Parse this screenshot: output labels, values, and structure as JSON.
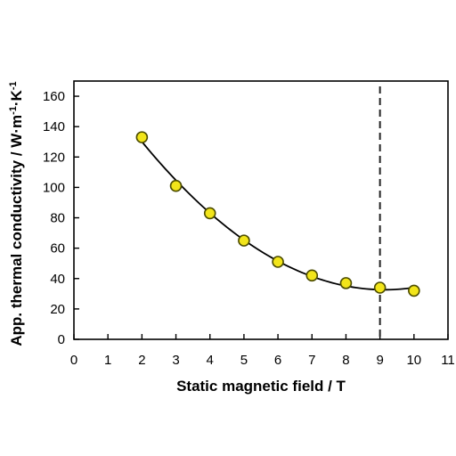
{
  "chart_data": {
    "type": "scatter",
    "title": "",
    "xlabel": "Static magnetic field / T",
    "ylabel_parts": [
      "App. thermal conductivity / W·m",
      "-1",
      "·K",
      "-1"
    ],
    "xlim": [
      0,
      11
    ],
    "ylim": [
      0,
      170
    ],
    "xticks": [
      0,
      1,
      2,
      3,
      4,
      5,
      6,
      7,
      8,
      9,
      10,
      11
    ],
    "yticks": [
      0,
      20,
      40,
      60,
      80,
      100,
      120,
      140,
      160
    ],
    "grid": false,
    "legend": "none",
    "points": [
      {
        "x": 2,
        "y": 133
      },
      {
        "x": 3,
        "y": 101
      },
      {
        "x": 4,
        "y": 83
      },
      {
        "x": 5,
        "y": 65
      },
      {
        "x": 6,
        "y": 51
      },
      {
        "x": 7,
        "y": 42
      },
      {
        "x": 8,
        "y": 37
      },
      {
        "x": 9,
        "y": 34
      },
      {
        "x": 10,
        "y": 32
      }
    ],
    "fit_curve": {
      "type": "quadratic",
      "x_range": [
        2,
        10
      ]
    },
    "vertical_line_x": 9,
    "marker_color": "#f2e51a",
    "marker_edge_color": "#4d4d00",
    "curve_color": "#000000"
  }
}
